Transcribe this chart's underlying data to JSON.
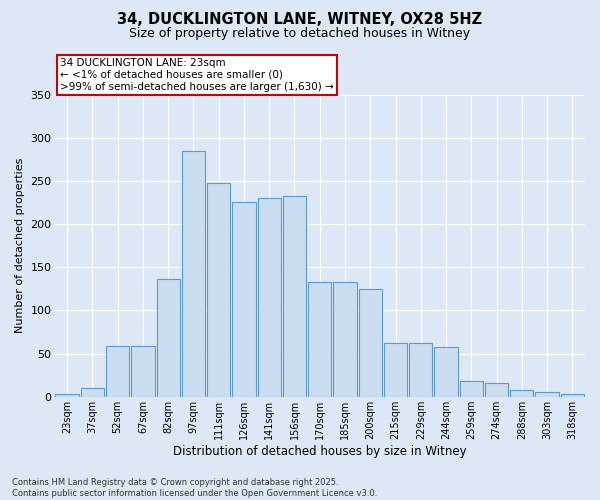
{
  "title_line1": "34, DUCKLINGTON LANE, WITNEY, OX28 5HZ",
  "title_line2": "Size of property relative to detached houses in Witney",
  "xlabel": "Distribution of detached houses by size in Witney",
  "ylabel": "Number of detached properties",
  "categories": [
    "23sqm",
    "37sqm",
    "52sqm",
    "67sqm",
    "82sqm",
    "97sqm",
    "111sqm",
    "126sqm",
    "141sqm",
    "156sqm",
    "170sqm",
    "185sqm",
    "200sqm",
    "215sqm",
    "229sqm",
    "244sqm",
    "259sqm",
    "274sqm",
    "288sqm",
    "303sqm",
    "318sqm"
  ],
  "values": [
    3,
    10,
    59,
    59,
    136,
    285,
    248,
    225,
    230,
    232,
    133,
    133,
    125,
    62,
    62,
    58,
    18,
    16,
    8,
    6,
    3
  ],
  "bar_color": "#ccddf0",
  "bar_edge_color": "#5b9bd5",
  "annotation_box_text": "34 DUCKLINGTON LANE: 23sqm\n← <1% of detached houses are smaller (0)\n>99% of semi-detached houses are larger (1,630) →",
  "annotation_box_color": "#ffffff",
  "annotation_box_edge_color": "#cc0000",
  "bg_color": "#dce8f5",
  "plot_bg_color": "#dce8f5",
  "grid_color": "#ffffff",
  "footnote": "Contains HM Land Registry data © Crown copyright and database right 2025.\nContains public sector information licensed under the Open Government Licence v3.0.",
  "ylim": [
    0,
    350
  ],
  "yticks": [
    0,
    50,
    100,
    150,
    200,
    250,
    300,
    350
  ]
}
